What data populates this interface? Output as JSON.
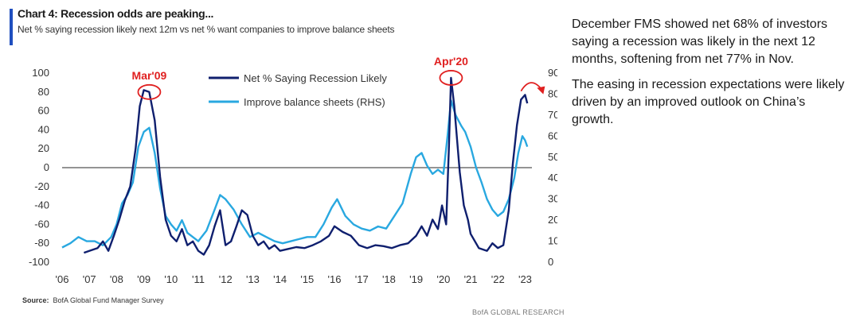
{
  "header": {
    "title": "Chart 4: Recession odds are peaking...",
    "subtitle": "Net % saying recession likely next 12m vs net % want companies to improve balance sheets"
  },
  "footer": {
    "source_label": "Source:",
    "source_text": "BofA Global Fund Manager Survey",
    "brand": "BofA GLOBAL RESEARCH"
  },
  "commentary": {
    "paragraphs": [
      "December FMS showed net 68% of investors saying a recession was likely in the next 12 months, softening from net 77% in Nov.",
      "The easing in recession expectations were likely driven by an improved outlook on China’s growth."
    ]
  },
  "colors": {
    "recession": "#0f1f6e",
    "balance": "#29a8e0",
    "annotation": "#e02020",
    "accent": "#1f4fbf"
  },
  "chart_data": {
    "type": "line",
    "x_ticks": [
      "'06",
      "'07",
      "'08",
      "'09",
      "'10",
      "'11",
      "'12",
      "'13",
      "'14",
      "'15",
      "'16",
      "'17",
      "'18",
      "'19",
      "'20",
      "'21",
      "'22",
      "'23"
    ],
    "y_left_ticks": [
      100,
      80,
      60,
      40,
      20,
      0,
      -20,
      -40,
      -60,
      -80,
      -100
    ],
    "y_right_ticks": [
      90,
      80,
      70,
      60,
      50,
      40,
      30,
      20,
      10,
      0
    ],
    "ylim_left": [
      -100,
      100
    ],
    "ylim_right": [
      0,
      90
    ],
    "xlim": [
      2006.0,
      2023.25
    ],
    "zero_line": true,
    "legend_position": "top-center",
    "series": [
      {
        "name": "Net % Saying Recession Likely",
        "axis": "left",
        "color": "#0f1f6e",
        "points": [
          [
            2006.8,
            -90
          ],
          [
            2007.0,
            -88
          ],
          [
            2007.3,
            -85
          ],
          [
            2007.5,
            -78
          ],
          [
            2007.7,
            -88
          ],
          [
            2007.9,
            -72
          ],
          [
            2008.1,
            -55
          ],
          [
            2008.3,
            -35
          ],
          [
            2008.5,
            -20
          ],
          [
            2008.7,
            20
          ],
          [
            2008.85,
            65
          ],
          [
            2009.0,
            82
          ],
          [
            2009.2,
            80
          ],
          [
            2009.4,
            50
          ],
          [
            2009.6,
            -10
          ],
          [
            2009.8,
            -55
          ],
          [
            2010.0,
            -72
          ],
          [
            2010.2,
            -78
          ],
          [
            2010.4,
            -65
          ],
          [
            2010.6,
            -82
          ],
          [
            2010.8,
            -78
          ],
          [
            2011.0,
            -88
          ],
          [
            2011.2,
            -92
          ],
          [
            2011.4,
            -82
          ],
          [
            2011.6,
            -62
          ],
          [
            2011.8,
            -45
          ],
          [
            2012.0,
            -82
          ],
          [
            2012.2,
            -78
          ],
          [
            2012.4,
            -62
          ],
          [
            2012.6,
            -45
          ],
          [
            2012.8,
            -50
          ],
          [
            2013.0,
            -72
          ],
          [
            2013.2,
            -82
          ],
          [
            2013.4,
            -78
          ],
          [
            2013.6,
            -86
          ],
          [
            2013.8,
            -82
          ],
          [
            2014.0,
            -88
          ],
          [
            2014.3,
            -86
          ],
          [
            2014.6,
            -84
          ],
          [
            2014.9,
            -85
          ],
          [
            2015.2,
            -82
          ],
          [
            2015.5,
            -78
          ],
          [
            2015.8,
            -72
          ],
          [
            2016.0,
            -62
          ],
          [
            2016.3,
            -68
          ],
          [
            2016.6,
            -72
          ],
          [
            2016.9,
            -82
          ],
          [
            2017.2,
            -85
          ],
          [
            2017.5,
            -82
          ],
          [
            2017.8,
            -83
          ],
          [
            2018.1,
            -85
          ],
          [
            2018.4,
            -82
          ],
          [
            2018.7,
            -80
          ],
          [
            2019.0,
            -72
          ],
          [
            2019.2,
            -62
          ],
          [
            2019.4,
            -72
          ],
          [
            2019.6,
            -55
          ],
          [
            2019.8,
            -65
          ],
          [
            2019.95,
            -40
          ],
          [
            2020.1,
            -60
          ],
          [
            2020.2,
            20
          ],
          [
            2020.28,
            95
          ],
          [
            2020.4,
            65
          ],
          [
            2020.6,
            -5
          ],
          [
            2020.75,
            -40
          ],
          [
            2020.9,
            -55
          ],
          [
            2021.0,
            -70
          ],
          [
            2021.3,
            -85
          ],
          [
            2021.6,
            -88
          ],
          [
            2021.8,
            -80
          ],
          [
            2022.0,
            -85
          ],
          [
            2022.2,
            -82
          ],
          [
            2022.4,
            -45
          ],
          [
            2022.55,
            5
          ],
          [
            2022.7,
            45
          ],
          [
            2022.85,
            72
          ],
          [
            2023.0,
            77
          ],
          [
            2023.08,
            68
          ]
        ]
      },
      {
        "name": "Improve balance sheets (RHS)",
        "axis": "right",
        "color": "#29a8e0",
        "points": [
          [
            2006.0,
            7
          ],
          [
            2006.3,
            9
          ],
          [
            2006.6,
            12
          ],
          [
            2006.9,
            10
          ],
          [
            2007.2,
            10
          ],
          [
            2007.5,
            8
          ],
          [
            2007.8,
            12
          ],
          [
            2008.0,
            18
          ],
          [
            2008.2,
            28
          ],
          [
            2008.4,
            32
          ],
          [
            2008.6,
            38
          ],
          [
            2008.8,
            55
          ],
          [
            2009.0,
            62
          ],
          [
            2009.2,
            64
          ],
          [
            2009.4,
            52
          ],
          [
            2009.6,
            35
          ],
          [
            2009.8,
            22
          ],
          [
            2010.0,
            18
          ],
          [
            2010.2,
            15
          ],
          [
            2010.4,
            20
          ],
          [
            2010.6,
            14
          ],
          [
            2010.8,
            12
          ],
          [
            2011.0,
            10
          ],
          [
            2011.3,
            15
          ],
          [
            2011.6,
            25
          ],
          [
            2011.8,
            32
          ],
          [
            2012.0,
            30
          ],
          [
            2012.3,
            25
          ],
          [
            2012.6,
            18
          ],
          [
            2012.9,
            12
          ],
          [
            2013.2,
            14
          ],
          [
            2013.5,
            12
          ],
          [
            2013.8,
            10
          ],
          [
            2014.1,
            9
          ],
          [
            2014.4,
            10
          ],
          [
            2014.7,
            11
          ],
          [
            2015.0,
            12
          ],
          [
            2015.3,
            12
          ],
          [
            2015.6,
            18
          ],
          [
            2015.9,
            26
          ],
          [
            2016.1,
            30
          ],
          [
            2016.4,
            22
          ],
          [
            2016.7,
            18
          ],
          [
            2017.0,
            16
          ],
          [
            2017.3,
            15
          ],
          [
            2017.6,
            17
          ],
          [
            2017.9,
            16
          ],
          [
            2018.2,
            22
          ],
          [
            2018.5,
            28
          ],
          [
            2018.8,
            42
          ],
          [
            2019.0,
            50
          ],
          [
            2019.2,
            52
          ],
          [
            2019.4,
            46
          ],
          [
            2019.6,
            42
          ],
          [
            2019.8,
            44
          ],
          [
            2020.0,
            42
          ],
          [
            2020.15,
            60
          ],
          [
            2020.28,
            77
          ],
          [
            2020.45,
            70
          ],
          [
            2020.65,
            65
          ],
          [
            2020.8,
            62
          ],
          [
            2021.0,
            55
          ],
          [
            2021.2,
            45
          ],
          [
            2021.4,
            38
          ],
          [
            2021.6,
            30
          ],
          [
            2021.8,
            25
          ],
          [
            2022.0,
            22
          ],
          [
            2022.2,
            24
          ],
          [
            2022.4,
            30
          ],
          [
            2022.6,
            40
          ],
          [
            2022.75,
            52
          ],
          [
            2022.9,
            60
          ],
          [
            2023.0,
            58
          ],
          [
            2023.08,
            55
          ]
        ]
      }
    ],
    "annotations": [
      {
        "label": "Mar'09",
        "x": 2009.2,
        "y": 80
      },
      {
        "label": "Apr'20",
        "x": 2020.28,
        "y": 95
      }
    ]
  }
}
